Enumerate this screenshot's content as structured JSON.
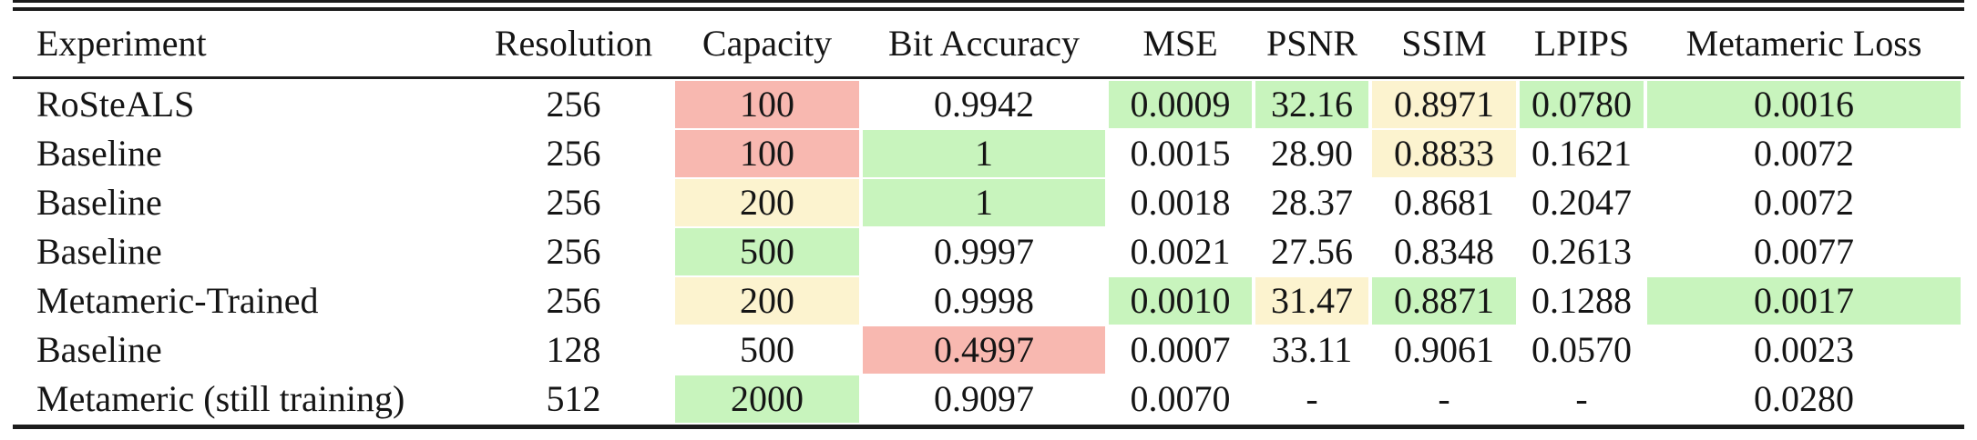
{
  "chart_data": {
    "type": "table",
    "title": "Experiment results comparison table",
    "columns": [
      "Experiment",
      "Resolution",
      "Capacity",
      "Bit Accuracy",
      "MSE",
      "PSNR",
      "SSIM",
      "LPIPS",
      "Metameric Loss"
    ],
    "rows": [
      [
        "RoSteALS",
        "256",
        "100",
        "0.9942",
        "0.0009",
        "32.16",
        "0.8971",
        "0.0780",
        "0.0016"
      ],
      [
        "Baseline",
        "256",
        "100",
        "1",
        "0.0015",
        "28.90",
        "0.8833",
        "0.1621",
        "0.0072"
      ],
      [
        "Baseline",
        "256",
        "200",
        "1",
        "0.0018",
        "28.37",
        "0.8681",
        "0.2047",
        "0.0072"
      ],
      [
        "Baseline",
        "256",
        "500",
        "0.9997",
        "0.0021",
        "27.56",
        "0.8348",
        "0.2613",
        "0.0077"
      ],
      [
        "Metameric-Trained",
        "256",
        "200",
        "0.9998",
        "0.0010",
        "31.47",
        "0.8871",
        "0.1288",
        "0.0017"
      ],
      [
        "Baseline",
        "128",
        "500",
        "0.4997",
        "0.0007",
        "33.11",
        "0.9061",
        "0.0570",
        "0.0023"
      ],
      [
        "Metameric (still training)",
        "512",
        "2000",
        "0.9097",
        "0.0070",
        "-",
        "-",
        "-",
        "0.0280"
      ]
    ],
    "cell_highlights": [
      [
        null,
        null,
        "red",
        null,
        "green",
        "green",
        "yellow",
        "green",
        "green"
      ],
      [
        null,
        null,
        "red",
        "green",
        null,
        null,
        "yellow",
        null,
        null
      ],
      [
        null,
        null,
        "yellow",
        "green",
        null,
        null,
        null,
        null,
        null
      ],
      [
        null,
        null,
        "green",
        null,
        null,
        null,
        null,
        null,
        null
      ],
      [
        null,
        null,
        "yellow",
        null,
        "green",
        "yellow",
        "green",
        null,
        "green"
      ],
      [
        null,
        null,
        null,
        "red",
        null,
        null,
        null,
        null,
        null
      ],
      [
        null,
        null,
        "green",
        null,
        null,
        null,
        null,
        null,
        null
      ]
    ],
    "highlight_colors": {
      "red": "#f8b8b0",
      "yellow": "#fcf3cf",
      "green": "#c8f4bd"
    },
    "layout_hints": {
      "first_column_align": "left",
      "other_columns_align": "center",
      "top_rule": "double",
      "bottom_rule": "single",
      "grid": "off"
    }
  }
}
